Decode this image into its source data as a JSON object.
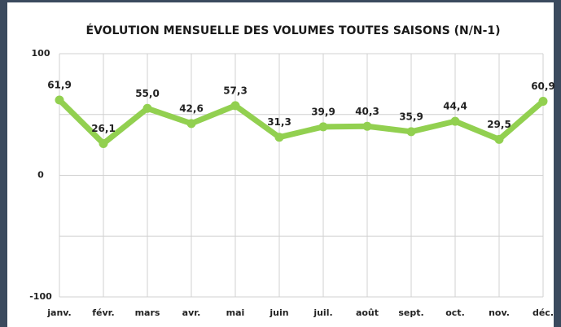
{
  "chart_data": {
    "type": "line",
    "title": "ÉVOLUTION MENSUELLE DES VOLUMES TOUTES SAISONS (N/N-1)",
    "categories": [
      "janv.",
      "févr.",
      "mars",
      "avr.",
      "mai",
      "juin",
      "juil.",
      "août",
      "sept.",
      "oct.",
      "nov.",
      "déc."
    ],
    "series": [
      {
        "color": "#92d050",
        "values": [
          61.9,
          26.1,
          55.0,
          42.6,
          57.3,
          31.3,
          39.9,
          40.3,
          35.9,
          44.4,
          29.5,
          60.9
        ],
        "value_labels": [
          "61,9",
          "26,1",
          "55,0",
          "42,6",
          "57,3",
          "31,3",
          "39,9",
          "40,3",
          "35,9",
          "44,4",
          "29,5",
          "60,9"
        ]
      }
    ],
    "ylim": [
      -100,
      100
    ],
    "yticks": [
      -100,
      0,
      100
    ],
    "minor_yticks": [
      -50,
      50
    ],
    "grid": true
  }
}
